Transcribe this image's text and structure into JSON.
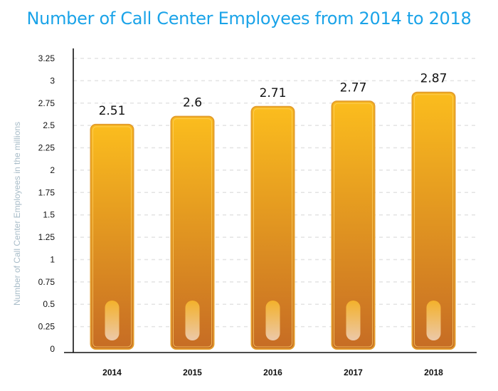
{
  "chart_data": {
    "type": "bar",
    "title": "Number of Call Center Employees from 2014 to 2018",
    "xlabel": "",
    "ylabel": "Number of Call Center Employees in the millions",
    "categories": [
      "2014",
      "2015",
      "2016",
      "2017",
      "2018"
    ],
    "values": [
      2.51,
      2.6,
      2.71,
      2.77,
      2.87
    ],
    "data_labels": [
      "2.51",
      "2.6",
      "2.71",
      "2.77",
      "2.87"
    ],
    "yticks": [
      "0",
      "0.25",
      "0.5",
      "0.75",
      "1",
      "1.25",
      "1.5",
      "1.75",
      "2",
      "2.25",
      "2.5",
      "2.75",
      "3",
      "3.25"
    ],
    "ylim": [
      0,
      3.25
    ],
    "grid": true,
    "legend": "none",
    "colors": {
      "title": "#1aa3e8",
      "bar_top": "#fbbd1e",
      "bar_bottom": "#c66c24",
      "bar_border": "#e39d2c",
      "grid": "#e3e3e3",
      "axis": "#111111"
    }
  }
}
